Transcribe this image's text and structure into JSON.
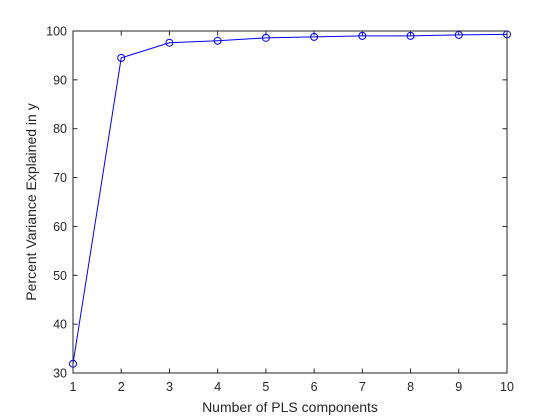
{
  "chart_data": {
    "type": "line",
    "xlabel": "Number of PLS components",
    "ylabel": "Percent Variance Explained in y",
    "xlim": [
      1,
      10
    ],
    "ylim": [
      30,
      100
    ],
    "xticks": [
      1,
      2,
      3,
      4,
      5,
      6,
      7,
      8,
      9,
      10
    ],
    "yticks": [
      30,
      40,
      50,
      60,
      70,
      80,
      90,
      100
    ],
    "grid": false,
    "line_color": "#0000ff",
    "marker": "circle",
    "series": [
      {
        "x": [
          1,
          2,
          3,
          4,
          5,
          6,
          7,
          8,
          9,
          10
        ],
        "y": [
          31.9,
          94.5,
          97.6,
          98.0,
          98.6,
          98.8,
          99.0,
          99.0,
          99.2,
          99.3
        ]
      }
    ]
  }
}
